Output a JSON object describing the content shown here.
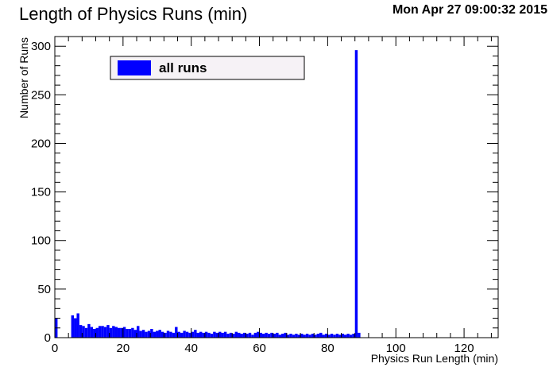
{
  "timestamp": "Mon Apr 27 09:00:32 2015",
  "colors": {
    "bar": "#0000ff",
    "legend_bg": "#f6f2f6",
    "axis": "#000000"
  },
  "chart_data": {
    "type": "bar",
    "title": "Length of Physics Runs (min)",
    "xlabel": "Physics Run Length (min)",
    "ylabel": "Number of Runs",
    "xlim": [
      0,
      130
    ],
    "ylim": [
      0,
      310
    ],
    "x_ticks": [
      0,
      20,
      40,
      60,
      80,
      100,
      120
    ],
    "y_ticks": [
      0,
      50,
      100,
      150,
      200,
      250,
      300
    ],
    "grid": false,
    "legend": {
      "position": "top-left",
      "entries": [
        "all runs"
      ]
    },
    "bin_width": 0.8,
    "series": [
      {
        "name": "all runs",
        "bins": [
          [
            0.0,
            20
          ],
          [
            4.8,
            23
          ],
          [
            5.6,
            20
          ],
          [
            6.4,
            25
          ],
          [
            7.2,
            13
          ],
          [
            8.0,
            12
          ],
          [
            8.8,
            10
          ],
          [
            9.6,
            14
          ],
          [
            10.4,
            11
          ],
          [
            11.2,
            9
          ],
          [
            12.0,
            10
          ],
          [
            12.8,
            12
          ],
          [
            13.6,
            12
          ],
          [
            14.4,
            11
          ],
          [
            15.2,
            13
          ],
          [
            16.0,
            10
          ],
          [
            16.8,
            12
          ],
          [
            17.6,
            11
          ],
          [
            18.4,
            10
          ],
          [
            19.2,
            10
          ],
          [
            20.0,
            11
          ],
          [
            20.8,
            9
          ],
          [
            21.6,
            9
          ],
          [
            22.4,
            10
          ],
          [
            23.2,
            8
          ],
          [
            24.0,
            12
          ],
          [
            24.8,
            7
          ],
          [
            25.6,
            8
          ],
          [
            26.4,
            6
          ],
          [
            27.2,
            7
          ],
          [
            28.0,
            9
          ],
          [
            28.8,
            6
          ],
          [
            29.6,
            7
          ],
          [
            30.4,
            8
          ],
          [
            31.2,
            6
          ],
          [
            32.0,
            5
          ],
          [
            32.8,
            7
          ],
          [
            33.6,
            6
          ],
          [
            34.4,
            5
          ],
          [
            35.2,
            11
          ],
          [
            36.0,
            6
          ],
          [
            36.8,
            5
          ],
          [
            37.6,
            7
          ],
          [
            38.4,
            6
          ],
          [
            39.2,
            5
          ],
          [
            40.0,
            6
          ],
          [
            40.8,
            8
          ],
          [
            41.6,
            5
          ],
          [
            42.4,
            6
          ],
          [
            43.2,
            5
          ],
          [
            44.0,
            6
          ],
          [
            44.8,
            5
          ],
          [
            45.6,
            4
          ],
          [
            46.4,
            6
          ],
          [
            47.2,
            5
          ],
          [
            48.0,
            6
          ],
          [
            48.8,
            5
          ],
          [
            49.6,
            6
          ],
          [
            50.4,
            4
          ],
          [
            51.2,
            5
          ],
          [
            52.0,
            4
          ],
          [
            52.8,
            6
          ],
          [
            53.6,
            5
          ],
          [
            54.4,
            4
          ],
          [
            55.2,
            5
          ],
          [
            56.0,
            4
          ],
          [
            56.8,
            5
          ],
          [
            57.6,
            3
          ],
          [
            58.4,
            5
          ],
          [
            59.2,
            6
          ],
          [
            60.0,
            5
          ],
          [
            60.8,
            4
          ],
          [
            61.6,
            5
          ],
          [
            62.4,
            4
          ],
          [
            63.2,
            5
          ],
          [
            64.0,
            4
          ],
          [
            64.8,
            5
          ],
          [
            65.6,
            3
          ],
          [
            66.4,
            4
          ],
          [
            67.2,
            5
          ],
          [
            68.0,
            3
          ],
          [
            68.8,
            4
          ],
          [
            69.6,
            3
          ],
          [
            70.4,
            4
          ],
          [
            71.2,
            3
          ],
          [
            72.0,
            4
          ],
          [
            72.8,
            3
          ],
          [
            73.6,
            4
          ],
          [
            74.4,
            3
          ],
          [
            75.2,
            4
          ],
          [
            76.0,
            3
          ],
          [
            76.8,
            4
          ],
          [
            77.6,
            5
          ],
          [
            78.4,
            3
          ],
          [
            79.2,
            4
          ],
          [
            80.0,
            3
          ],
          [
            80.8,
            4
          ],
          [
            81.6,
            3
          ],
          [
            82.4,
            4
          ],
          [
            83.2,
            3
          ],
          [
            84.0,
            4
          ],
          [
            84.8,
            3
          ],
          [
            85.6,
            4
          ],
          [
            86.4,
            3
          ],
          [
            87.2,
            4
          ],
          [
            88.0,
            296
          ],
          [
            88.8,
            5
          ]
        ]
      }
    ]
  }
}
